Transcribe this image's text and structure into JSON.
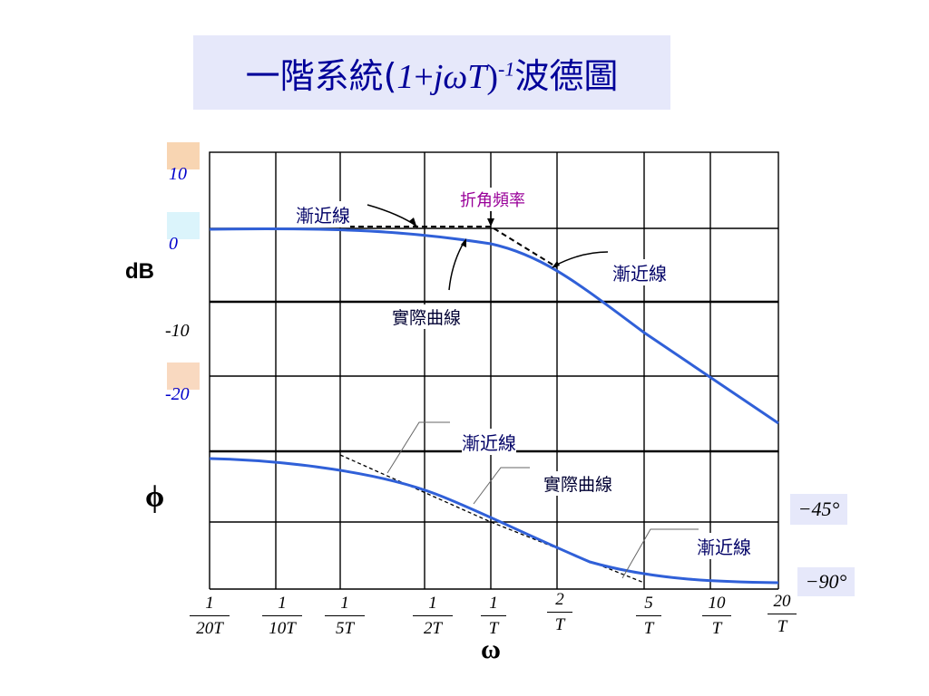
{
  "title": {
    "prefix": "一階系統(",
    "one": "1",
    "plus": "+",
    "jwT": "jωT",
    "close": ")",
    "exponent": "-1",
    "suffix": "波德圖"
  },
  "y_axis_db": {
    "label": "dB",
    "ticks": [
      "10",
      "0",
      "-10",
      "-20"
    ],
    "tick_colors": [
      "#0000cc",
      "#0000cc",
      "#000000",
      "#0000cc"
    ],
    "swatch_colors": [
      "#f8d5b2",
      "#dbf4fb",
      "#f9d9c0"
    ]
  },
  "y_axis_phase": {
    "label": "ϕ",
    "ticks": [
      "−45°",
      "−90°"
    ]
  },
  "x_axis": {
    "label": "ω",
    "ticks": [
      {
        "num": "1",
        "den": "20T"
      },
      {
        "num": "1",
        "den": "10T"
      },
      {
        "num": "1",
        "den": "5T"
      },
      {
        "num": "1",
        "den": "2T"
      },
      {
        "num": "1",
        "den": "T"
      },
      {
        "num": "2",
        "den": "T"
      },
      {
        "num": "5",
        "den": "T"
      },
      {
        "num": "10",
        "den": "T"
      },
      {
        "num": "20",
        "den": "T"
      }
    ]
  },
  "annotations": {
    "asymptote_top_left": "漸近線",
    "corner_frequency": "折角頻率",
    "asymptote_top_right": "漸近線",
    "actual_curve_top": "實際曲線",
    "asymptote_phase_top": "漸近線",
    "actual_curve_phase": "實際曲線",
    "asymptote_phase_bottom": "漸近線"
  },
  "colors": {
    "curve": "#3060d8",
    "grid": "#000000",
    "title_bg": "#e6e8fa",
    "title_text": "#000099",
    "corner_label": "#990099"
  }
}
